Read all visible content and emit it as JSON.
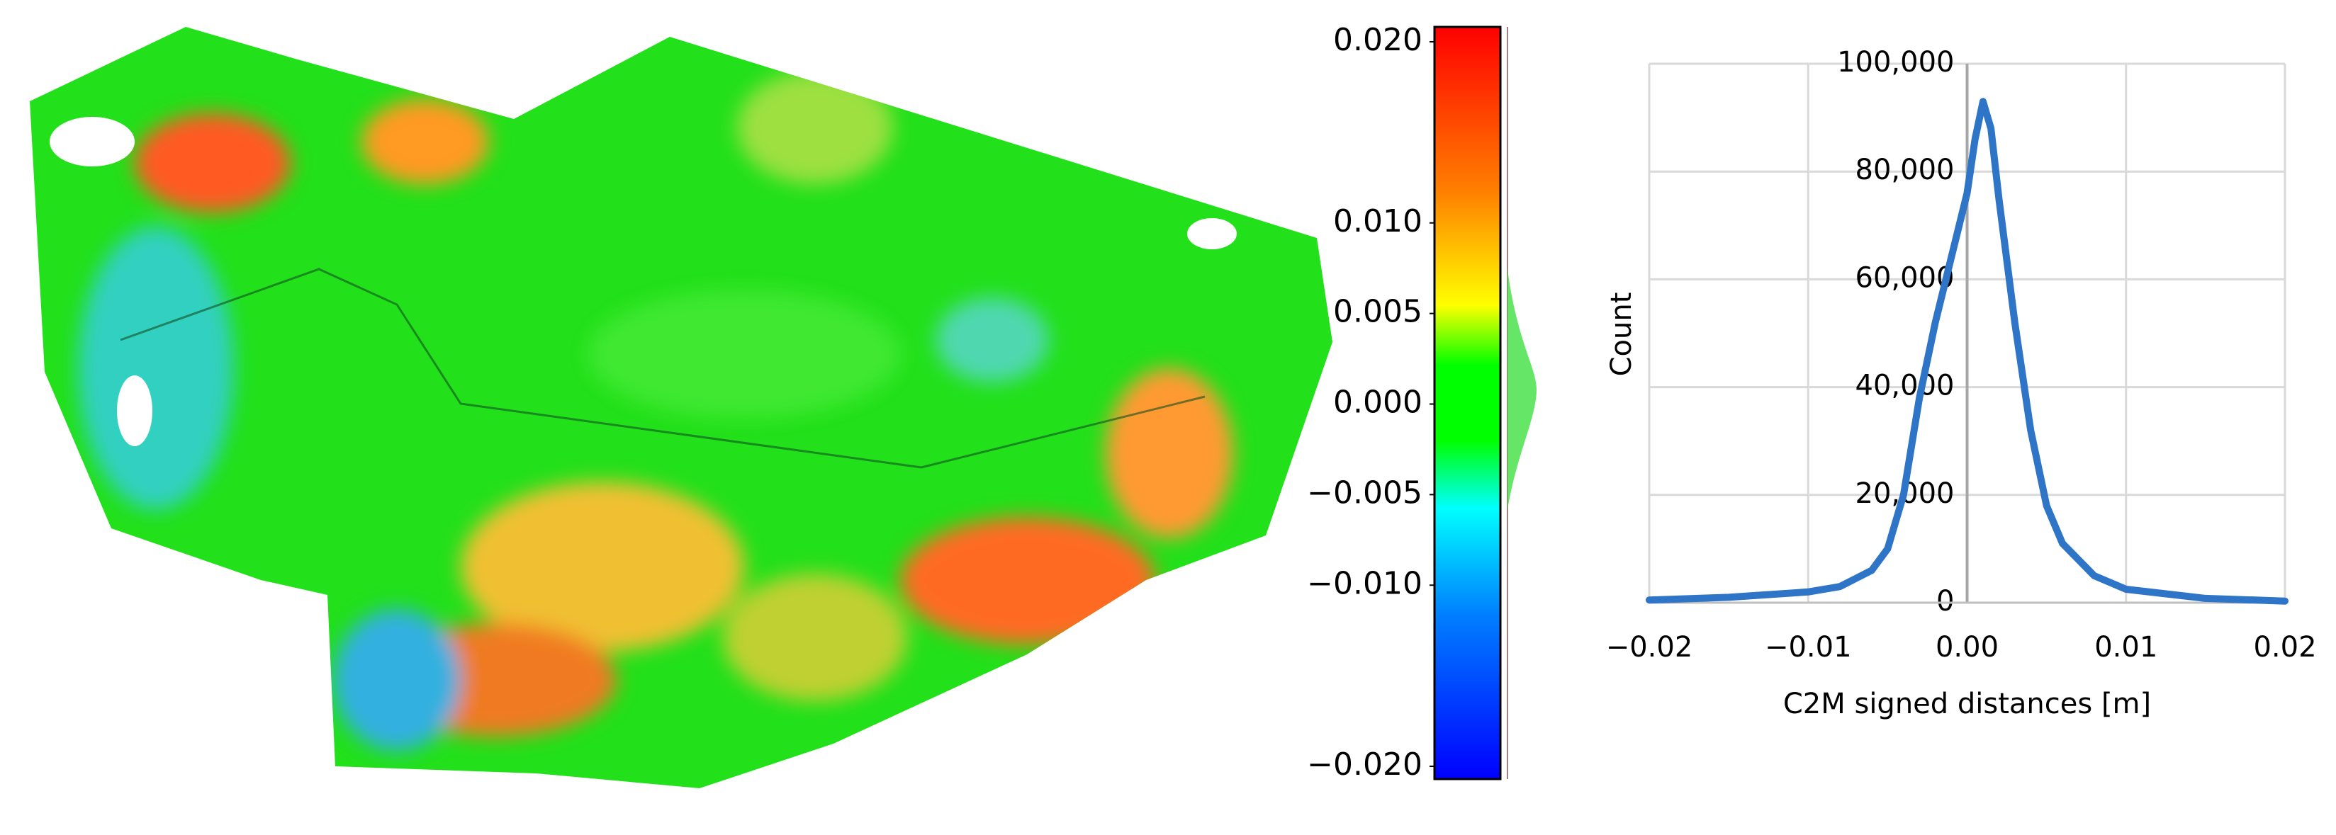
{
  "chart_data": [
    {
      "type": "colorbar",
      "ylim": [
        -0.02,
        0.02
      ],
      "yticks": [
        {
          "value": 0.02,
          "label": "0.020"
        },
        {
          "value": 0.01,
          "label": "0.010"
        },
        {
          "value": 0.005,
          "label": "0.005"
        },
        {
          "value": 0,
          "label": "0.000"
        },
        {
          "value": -0.005,
          "label": "−0.005"
        },
        {
          "value": -0.01,
          "label": "−0.010"
        },
        {
          "value": -0.02,
          "label": "−0.020"
        }
      ]
    },
    {
      "type": "line",
      "xlabel": "C2M signed distances [m]",
      "ylabel": "Count",
      "x": [
        -0.02,
        -0.015,
        -0.01,
        -0.008,
        -0.006,
        -0.005,
        -0.004,
        -0.003,
        -0.002,
        -0.001,
        0,
        0.0005,
        0.001,
        0.0015,
        0.002,
        0.003,
        0.004,
        0.005,
        0.006,
        0.008,
        0.01,
        0.015,
        0.02
      ],
      "series": [
        {
          "color": "#2e75c8",
          "values": [
            500,
            1000,
            2000,
            3000,
            6000,
            10000,
            20000,
            38000,
            52000,
            64000,
            76000,
            86000,
            93000,
            88000,
            75000,
            52000,
            32000,
            18000,
            11000,
            5000,
            2500,
            800,
            300
          ]
        }
      ],
      "xlim": [
        -0.02,
        0.02
      ],
      "xticks": [
        {
          "value": -0.02,
          "label": "−0.02"
        },
        {
          "value": -0.01,
          "label": "−0.01"
        },
        {
          "value": 0,
          "label": "0.00"
        },
        {
          "value": 0.01,
          "label": "0.01"
        },
        {
          "value": 0.02,
          "label": "0.02"
        }
      ],
      "ylim": [
        0,
        100000
      ],
      "yticks": [
        0,
        {
          "value": 20000,
          "label": "20,000"
        },
        {
          "value": 40000,
          "label": "40,000"
        },
        {
          "value": 60000,
          "label": "60,000"
        },
        {
          "value": 80000,
          "label": "80,000"
        },
        {
          "value": 100000,
          "label": "100,000"
        }
      ],
      "grid": true
    }
  ]
}
